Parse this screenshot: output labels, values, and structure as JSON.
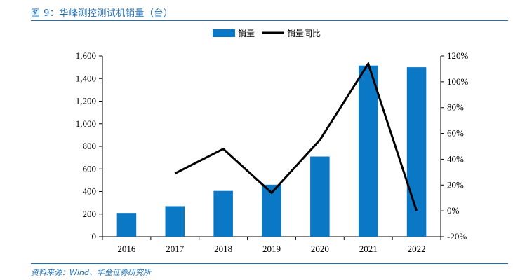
{
  "title": "图 9：华峰测控测试机销量（台）",
  "source": "资料来源：Wind、华金证券研究所",
  "colors": {
    "accent": "#1f6fb5",
    "bar": "#0b78c6",
    "line": "#000000"
  },
  "chart_data": {
    "type": "bar",
    "categories": [
      "2016",
      "2017",
      "2018",
      "2019",
      "2020",
      "2021",
      "2022"
    ],
    "series": [
      {
        "name": "销量",
        "type": "bar",
        "axis": "left",
        "values": [
          210,
          270,
          405,
          460,
          710,
          1515,
          1500
        ]
      },
      {
        "name": "销量同比",
        "type": "line",
        "axis": "right",
        "values": [
          null,
          29,
          48,
          14,
          55,
          114,
          0
        ]
      }
    ],
    "y_left": {
      "ylim": [
        0,
        1600
      ],
      "ticks": [
        0,
        200,
        400,
        600,
        800,
        1000,
        1200,
        1400,
        1600
      ],
      "tick_labels": [
        "0",
        "200",
        "400",
        "600",
        "800",
        "1,000",
        "1,200",
        "1,400",
        "1,600"
      ]
    },
    "y_right": {
      "ylim": [
        -20,
        120
      ],
      "ticks": [
        -20,
        0,
        20,
        40,
        60,
        80,
        100,
        120
      ],
      "tick_labels": [
        "-20%",
        "0%",
        "20%",
        "40%",
        "60%",
        "80%",
        "100%",
        "120%"
      ]
    },
    "legend": {
      "position": "top-center"
    },
    "grid": false
  }
}
